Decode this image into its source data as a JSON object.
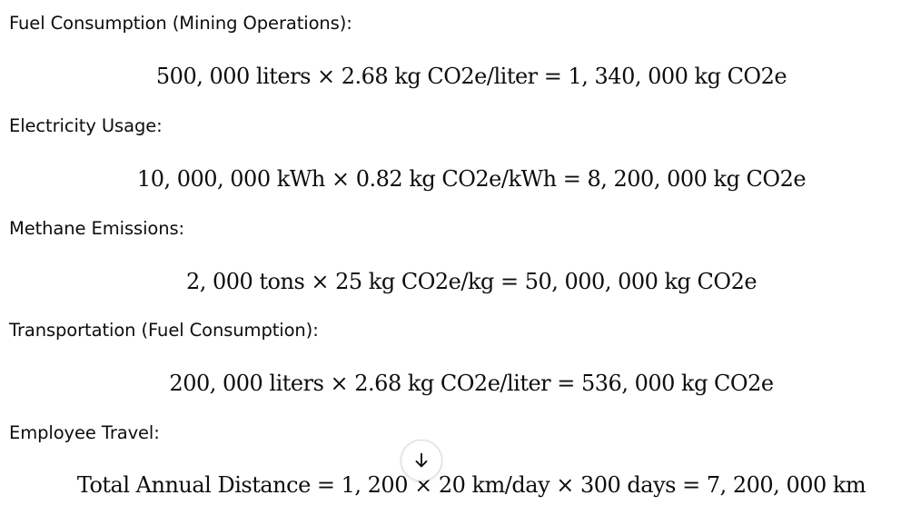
{
  "sections": [
    {
      "label": "Fuel Consumption (Mining Operations):",
      "equation": "500, 000 liters × 2.68 kg CO2e/liter = 1, 340, 000 kg CO2e"
    },
    {
      "label": "Electricity Usage:",
      "equation": "10, 000, 000 kWh × 0.82 kg CO2e/kWh = 8, 200, 000 kg CO2e"
    },
    {
      "label": "Methane Emissions:",
      "equation": "2, 000 tons × 25 kg CO2e/kg = 50, 000, 000 kg CO2e"
    },
    {
      "label": "Transportation (Fuel Consumption):",
      "equation": "200, 000 liters × 2.68 kg CO2e/liter = 536, 000 kg CO2e"
    },
    {
      "label": "Employee Travel:",
      "equation": "Total Annual Distance = 1, 200 × 20 km/day × 300 days = 7, 200, 000 km"
    }
  ],
  "scroll_button": {
    "icon": "arrow-down-icon"
  }
}
